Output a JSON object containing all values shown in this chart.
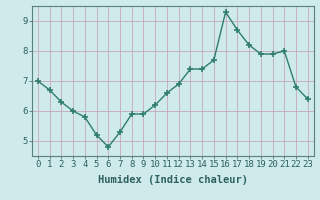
{
  "x": [
    0,
    1,
    2,
    3,
    4,
    5,
    6,
    7,
    8,
    9,
    10,
    11,
    12,
    13,
    14,
    15,
    16,
    17,
    18,
    19,
    20,
    21,
    22,
    23
  ],
  "y": [
    7.0,
    6.7,
    6.3,
    6.0,
    5.8,
    5.2,
    4.8,
    5.3,
    5.9,
    5.9,
    6.2,
    6.6,
    6.9,
    7.4,
    7.4,
    7.7,
    9.3,
    8.7,
    8.2,
    7.9,
    7.9,
    8.0,
    6.8,
    6.4
  ],
  "line_color": "#2e7d6e",
  "marker": "+",
  "marker_size": 4.0,
  "line_width": 1.0,
  "bg_color": "#ceeaea",
  "grid_color": "#c8a8b8",
  "xlabel": "Humidex (Indice chaleur)",
  "ylim": [
    4.5,
    9.5
  ],
  "xlim": [
    -0.5,
    23.5
  ],
  "yticks": [
    5,
    6,
    7,
    8,
    9
  ],
  "xticks": [
    0,
    1,
    2,
    3,
    4,
    5,
    6,
    7,
    8,
    9,
    10,
    11,
    12,
    13,
    14,
    15,
    16,
    17,
    18,
    19,
    20,
    21,
    22,
    23
  ],
  "xlabel_fontsize": 7.5,
  "tick_fontsize": 6.5,
  "tick_color": "#2e6060",
  "axis_color": "#5a8080",
  "spine_color": "#5a8080"
}
